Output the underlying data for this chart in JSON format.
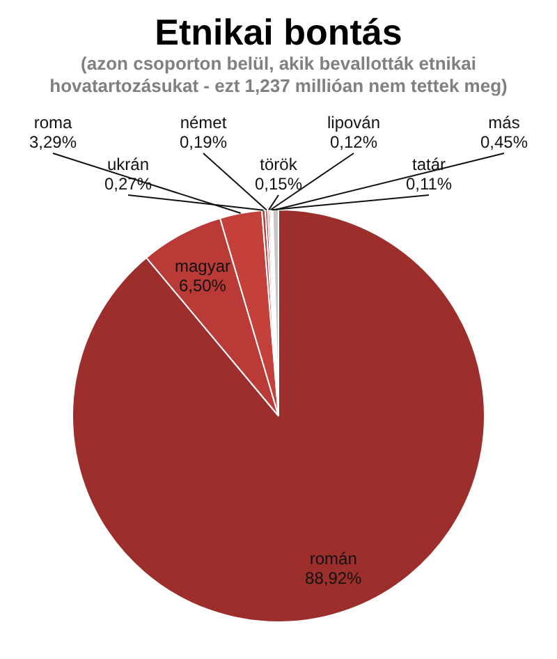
{
  "chart_data": {
    "type": "pie",
    "title": "Etnikai bontás",
    "subtitle": "(azon csoporton  belül, akik bevallották etnikai hovatartozásukat  -  ezt 1,237 millióan nem tettek meg)",
    "categories": [
      "román",
      "magyar",
      "roma",
      "ukrán",
      "német",
      "török",
      "lipován",
      "tatár",
      "más"
    ],
    "values": [
      88.92,
      6.5,
      3.29,
      0.27,
      0.19,
      0.15,
      0.12,
      0.11,
      0.45
    ],
    "value_labels": [
      "88,92%",
      "6,50%",
      "3,29%",
      "0,27%",
      "0,19%",
      "0,15%",
      "0,12%",
      "0,11%",
      "0,45%"
    ],
    "colors": [
      "#9c2f2c",
      "#b93a36",
      "#c4403b",
      "#b6423e",
      "#a8332f",
      "#b33c38",
      "#a53431",
      "#bd4a45",
      "#c6c6c6"
    ],
    "legend": false
  }
}
